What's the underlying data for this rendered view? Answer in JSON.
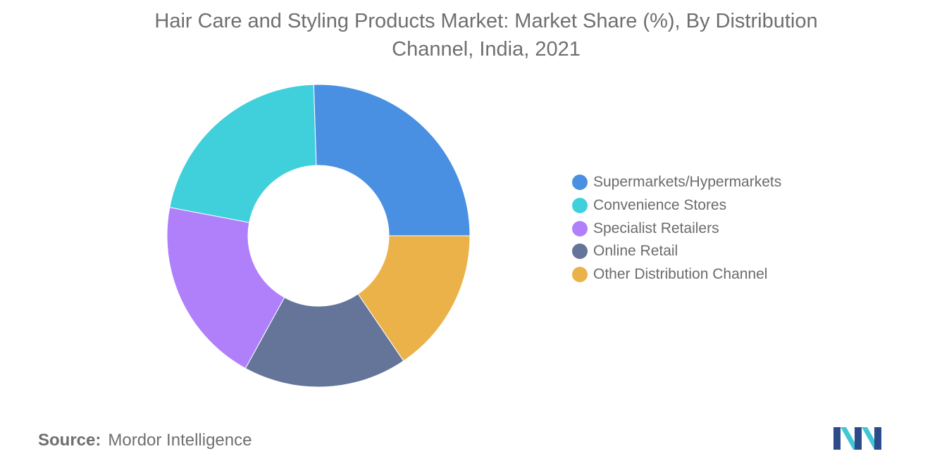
{
  "title": "Hair Care and Styling Products Market: Market Share (%), By Distribution Channel, India, 2021",
  "source": {
    "label": "Source:",
    "name": "Mordor Intelligence"
  },
  "logo": {
    "icon": "mordor-intelligence-logo-icon",
    "colors": [
      "#2b4b8c",
      "#3fc7d6"
    ]
  },
  "chart_data": {
    "type": "pie",
    "subtype": "donut",
    "title": "Hair Care and Styling Products Market: Market Share (%), By Distribution Channel, India, 2021",
    "legend_position": "right",
    "categories": [
      "Supermarkets/Hypermarkets",
      "Convenience Stores",
      "Specialist Retailers",
      "Online Retail",
      "Other Distribution Channel"
    ],
    "values": [
      25.5,
      21.5,
      20,
      17.5,
      15.5
    ],
    "colors": [
      "#4a90e2",
      "#40d0db",
      "#b07ffa",
      "#647599",
      "#ebb24a"
    ],
    "start_angle_deg": 0,
    "direction": "counterclockwise"
  }
}
